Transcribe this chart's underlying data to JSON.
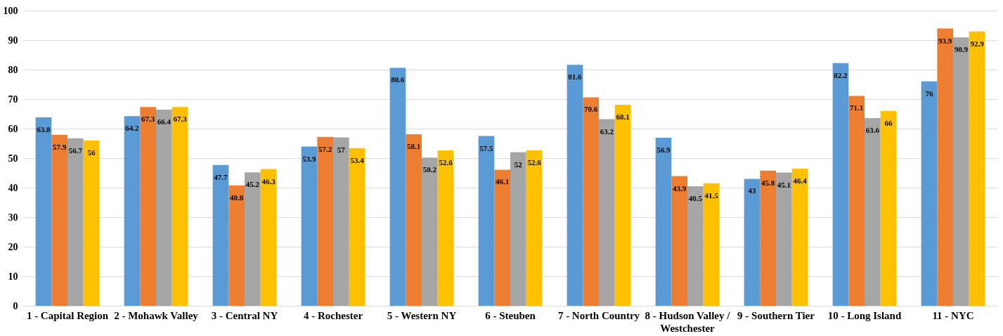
{
  "chart_data": {
    "type": "bar",
    "categories": [
      "1 - Capital Region",
      "2 - Mohawk Valley",
      "3 - Central NY",
      "4 - Rochester",
      "5 - Western NY",
      "6 - Steuben",
      "7 - North Country",
      "8 - Hudson Valley / Westchester",
      "9 - Southern Tier",
      "10 - Long Island",
      "11 - NYC"
    ],
    "series": [
      {
        "color": "#5b9bd5",
        "values": [
          63.8,
          64.2,
          47.7,
          53.9,
          80.6,
          57.5,
          81.6,
          56.9,
          43,
          82.2,
          76
        ]
      },
      {
        "color": "#ed7d31",
        "values": [
          57.9,
          67.3,
          40.8,
          57.2,
          58.1,
          46.1,
          70.6,
          43.9,
          45.8,
          71.1,
          93.9
        ]
      },
      {
        "color": "#a5a5a5",
        "values": [
          56.7,
          66.4,
          45.2,
          57,
          50.2,
          52,
          63.2,
          40.5,
          45.1,
          63.6,
          90.9
        ]
      },
      {
        "color": "#ffc000",
        "values": [
          56,
          67.3,
          46.3,
          53.4,
          52.6,
          52.6,
          68.1,
          41.5,
          46.4,
          66,
          92.9
        ]
      }
    ],
    "ylim": [
      0,
      100
    ],
    "yticks": [
      0,
      10,
      20,
      30,
      40,
      50,
      60,
      70,
      80,
      90,
      100
    ],
    "grid": true,
    "data_labels": true
  }
}
